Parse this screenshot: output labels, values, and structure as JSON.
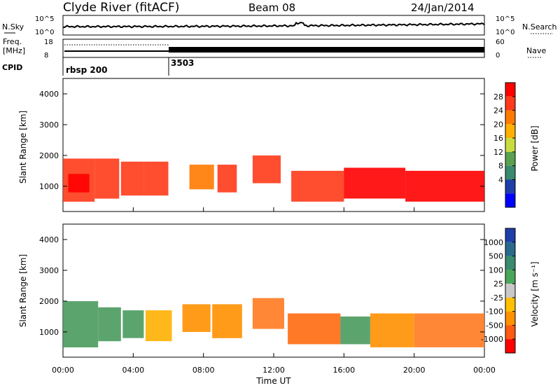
{
  "header": {
    "station": "Clyde River (fitACF)",
    "beam": "Beam 08",
    "date": "24/Jan/2014"
  },
  "noise_panel": {
    "left_label": "N.Sky",
    "right_label": "N.Search",
    "left_ticks": [
      "10^5",
      "10^0"
    ],
    "right_ticks": [
      "10^5",
      "10^0"
    ]
  },
  "freq_panel": {
    "left_label_1": "Freq.",
    "left_label_2": "[MHz]",
    "right_label": "Nave",
    "left_ticks": [
      "18",
      "8"
    ],
    "right_ticks": [
      "60",
      "0"
    ]
  },
  "cpid_panel": {
    "label": "CPID",
    "segments": [
      {
        "start_hour": 0,
        "text": "rbsp 200"
      },
      {
        "start_hour": 6,
        "text": "3503"
      }
    ]
  },
  "x_axis": {
    "title": "Time UT",
    "tick_hours": [
      0,
      4,
      8,
      12,
      16,
      20,
      24
    ],
    "tick_labels": [
      "00:00",
      "04:00",
      "08:00",
      "12:00",
      "16:00",
      "20:00",
      "00:00"
    ],
    "range_hours": [
      0,
      24
    ]
  },
  "chart_data": [
    {
      "type": "heatmap",
      "quantity": "Power",
      "ylabel": "Slant Range [km]",
      "ylim": [
        180,
        4500
      ],
      "yticks": [
        1000,
        2000,
        3000,
        4000
      ],
      "xlim": [
        0,
        24
      ],
      "colorbar": {
        "label": "Power [dB]",
        "labels": [
          "28",
          "24",
          "20",
          "16",
          "12",
          "8",
          "4"
        ],
        "colors": [
          "#ff0000",
          "#ff3a1a",
          "#ff7a00",
          "#ffb000",
          "#c8dc40",
          "#5aa050",
          "#3a8a6e",
          "#1e3ea8",
          "#0000ff"
        ]
      },
      "regions": [
        {
          "t0": 0.0,
          "t1": 1.8,
          "r0": 500,
          "r1": 1900,
          "color": "#ff3a1a"
        },
        {
          "t0": 0.3,
          "t1": 1.5,
          "r0": 800,
          "r1": 1400,
          "color": "#ff0000"
        },
        {
          "t0": 1.8,
          "t1": 3.2,
          "r0": 600,
          "r1": 1900,
          "color": "#ff3a1a"
        },
        {
          "t0": 3.3,
          "t1": 4.6,
          "r0": 700,
          "r1": 1800,
          "color": "#ff3a1a"
        },
        {
          "t0": 4.6,
          "t1": 6.0,
          "r0": 700,
          "r1": 1800,
          "color": "#ff3a1a"
        },
        {
          "t0": 7.2,
          "t1": 8.6,
          "r0": 900,
          "r1": 1700,
          "color": "#ff7a00"
        },
        {
          "t0": 8.8,
          "t1": 9.9,
          "r0": 800,
          "r1": 1700,
          "color": "#ff3a1a"
        },
        {
          "t0": 10.8,
          "t1": 12.4,
          "r0": 1100,
          "r1": 2000,
          "color": "#ff3a1a"
        },
        {
          "t0": 13.0,
          "t1": 16.0,
          "r0": 500,
          "r1": 1500,
          "color": "#ff3a1a"
        },
        {
          "t0": 16.0,
          "t1": 19.5,
          "r0": 600,
          "r1": 1600,
          "color": "#ff0000"
        },
        {
          "t0": 19.5,
          "t1": 24.0,
          "r0": 500,
          "r1": 1500,
          "color": "#ff0000"
        }
      ]
    },
    {
      "type": "heatmap",
      "quantity": "Velocity",
      "ylabel": "Slant Range [km]",
      "ylim": [
        180,
        4500
      ],
      "yticks": [
        1000,
        2000,
        3000,
        4000
      ],
      "xlim": [
        0,
        24
      ],
      "colorbar": {
        "label": "Velocity [m s⁻¹]",
        "labels": [
          "1000",
          "500",
          "100",
          "25",
          "-25",
          "-100",
          "-500",
          "-1000"
        ],
        "colors": [
          "#1e3ea8",
          "#2a6a8a",
          "#3a8a6e",
          "#4aa658",
          "#c8c8c8",
          "#ffc000",
          "#ff9000",
          "#ff5a10",
          "#ff0000"
        ]
      },
      "regions": [
        {
          "t0": 0.0,
          "t1": 2.0,
          "r0": 500,
          "r1": 2000,
          "color": "#4a9a5e"
        },
        {
          "t0": 2.0,
          "t1": 3.3,
          "r0": 700,
          "r1": 1800,
          "color": "#4a9a5e"
        },
        {
          "t0": 3.4,
          "t1": 4.6,
          "r0": 800,
          "r1": 1700,
          "color": "#4a9a5e"
        },
        {
          "t0": 4.7,
          "t1": 6.2,
          "r0": 700,
          "r1": 1700,
          "color": "#ffb000"
        },
        {
          "t0": 6.8,
          "t1": 8.4,
          "r0": 1000,
          "r1": 1900,
          "color": "#ff9000"
        },
        {
          "t0": 8.5,
          "t1": 10.2,
          "r0": 800,
          "r1": 1900,
          "color": "#ff9000"
        },
        {
          "t0": 10.8,
          "t1": 12.6,
          "r0": 1100,
          "r1": 2100,
          "color": "#ff7a20"
        },
        {
          "t0": 12.8,
          "t1": 15.8,
          "r0": 600,
          "r1": 1600,
          "color": "#ff6a10"
        },
        {
          "t0": 15.8,
          "t1": 17.5,
          "r0": 600,
          "r1": 1500,
          "color": "#4a9a5e"
        },
        {
          "t0": 17.5,
          "t1": 20.0,
          "r0": 500,
          "r1": 1600,
          "color": "#ff9000"
        },
        {
          "t0": 20.0,
          "t1": 24.0,
          "r0": 500,
          "r1": 1600,
          "color": "#ff7a20"
        }
      ]
    }
  ]
}
